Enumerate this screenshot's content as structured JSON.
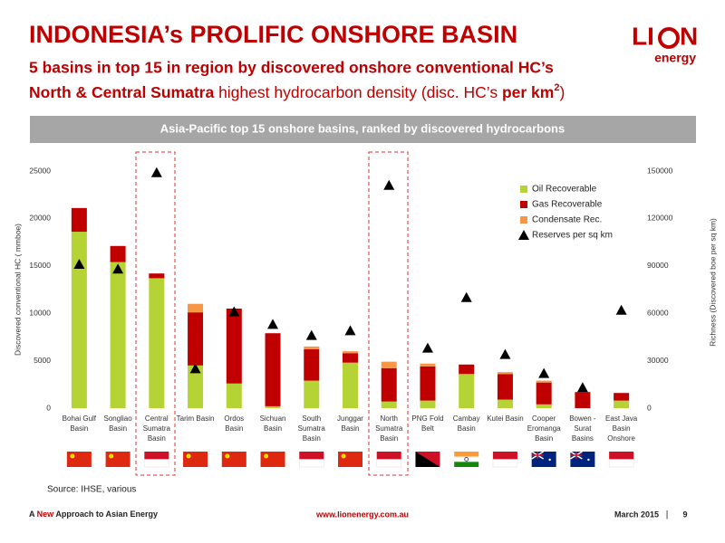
{
  "header": {
    "title": "INDONESIA’s PROLIFIC ONSHORE BASIN",
    "subtitle_line1": "5 basins in top 15 in region by discovered onshore conventional HC’s",
    "subtitle_line2": {
      "bold": "North & Central Sumatra",
      "middle": " highest hydrocarbon density (disc. HC’s ",
      "bold2": "per km",
      "superscript": "2",
      "end": ")"
    }
  },
  "logo": {
    "left": "LI",
    "right": "N",
    "tagline": "energy"
  },
  "chart_data": {
    "type": "bar",
    "stacked": true,
    "title": "Asia-Pacific top 15 onshore basins, ranked by discovered hydrocarbons",
    "y_label": "Discovered conventional HC ( mmboe)",
    "y2_label": "Richness (Discovered boe per sq km)",
    "categories": [
      "Bohai Gulf Basin",
      "Songliao Basin",
      "Central Sumatra Basin",
      "Tarim Basin",
      "Ordos Basin",
      "Sichuan Basin",
      "South Sumatra Basin",
      "Junggar Basin",
      "North Sumatra Basin",
      "PNG Fold Belt",
      "Cambay Basin",
      "Kutei Basin",
      "Cooper Eromanga Basin",
      "Bowen - Surat Basins",
      "East Java Basin Onshore"
    ],
    "series": [
      {
        "name": "Oil Recoverable",
        "color": "#b5d334",
        "values": [
          18600,
          15400,
          13700,
          4500,
          2600,
          200,
          2900,
          4800,
          700,
          800,
          3600,
          900,
          400,
          0,
          800
        ]
      },
      {
        "name": "Gas Recoverable",
        "color": "#c00000",
        "values": [
          2500,
          1700,
          500,
          5600,
          7900,
          7700,
          3300,
          1000,
          3500,
          3600,
          1000,
          2700,
          2300,
          1700,
          800
        ]
      },
      {
        "name": "Condensate Rec.",
        "color": "#f79646",
        "values": [
          0,
          0,
          0,
          900,
          0,
          0,
          300,
          200,
          700,
          300,
          0,
          200,
          200,
          0,
          0
        ]
      },
      {
        "name": "Reserves per sq km",
        "color": "#000000",
        "axis": "y2",
        "marker": "triangle",
        "values": [
          91000,
          88000,
          149000,
          25000,
          61000,
          53000,
          46000,
          49000,
          141000,
          38000,
          70000,
          34000,
          22000,
          13000,
          62000
        ]
      }
    ],
    "ylim": [
      0,
      25000
    ],
    "yticks": [
      0,
      5000,
      10000,
      15000,
      20000,
      25000
    ],
    "y2lim": [
      0,
      150000
    ],
    "y2ticks": [
      0,
      30000,
      60000,
      90000,
      120000,
      150000
    ],
    "grid": false,
    "legend": "top-right"
  },
  "source": "Source: IHSE, various",
  "footer": {
    "left_a": "A ",
    "left_new": "New",
    "left_b": " Approach to Asian Energy",
    "url": "www.lionenergy.com.au",
    "date": "March 2015",
    "separator": "|",
    "page": "9"
  }
}
